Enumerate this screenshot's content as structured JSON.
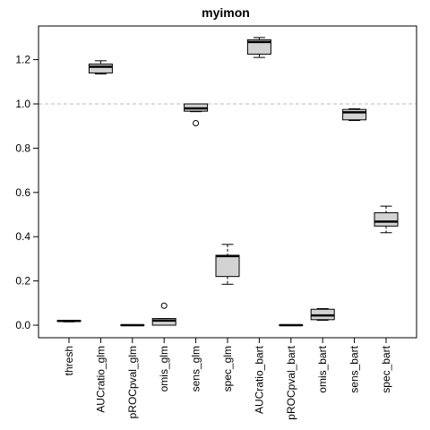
{
  "chart_data": {
    "type": "boxplot",
    "title": "myimon",
    "xlabel": "",
    "ylabel": "",
    "ylim": [
      -0.05,
      1.35
    ],
    "yticks": [
      0.0,
      0.2,
      0.4,
      0.6,
      0.8,
      1.0,
      1.2
    ],
    "ytick_labels": [
      "0.0",
      "0.2",
      "0.4",
      "0.6",
      "0.8",
      "1.0",
      "1.2"
    ],
    "reference_line": {
      "y": 1.0,
      "style": "dashed",
      "color": "#bbbbbb"
    },
    "box_fill": "#d3d3d3",
    "categories": [
      "thresh",
      "AUCratio_glm",
      "pROCpval_glm",
      "omis_glm",
      "sens_glm",
      "spec_glm",
      "AUCratio_bart",
      "pROCpval_bart",
      "omis_bart",
      "sens_bart",
      "spec_bart"
    ],
    "boxes": [
      {
        "min": 0.015,
        "q1": 0.017,
        "median": 0.019,
        "q3": 0.021,
        "max": 0.022,
        "outliers": []
      },
      {
        "min": 1.135,
        "q1": 1.14,
        "median": 1.168,
        "q3": 1.18,
        "max": 1.195,
        "outliers": []
      },
      {
        "min": 0.0,
        "q1": 0.0,
        "median": 0.0,
        "q3": 0.001,
        "max": 0.002,
        "outliers": []
      },
      {
        "min": 0.0,
        "q1": 0.0,
        "median": 0.021,
        "q3": 0.03,
        "max": 0.03,
        "outliers": [
          0.088
        ]
      },
      {
        "min": 0.965,
        "q1": 0.967,
        "median": 0.98,
        "q3": 1.0,
        "max": 1.0,
        "outliers": [
          0.913
        ]
      },
      {
        "min": 0.185,
        "q1": 0.22,
        "median": 0.312,
        "q3": 0.316,
        "max": 0.365,
        "outliers": []
      },
      {
        "min": 1.21,
        "q1": 1.225,
        "median": 1.28,
        "q3": 1.29,
        "max": 1.3,
        "outliers": []
      },
      {
        "min": 0.0,
        "q1": 0.0,
        "median": 0.0,
        "q3": 0.001,
        "max": 0.002,
        "outliers": []
      },
      {
        "min": 0.022,
        "q1": 0.025,
        "median": 0.044,
        "q3": 0.072,
        "max": 0.075,
        "outliers": []
      },
      {
        "min": 0.925,
        "q1": 0.928,
        "median": 0.962,
        "q3": 0.975,
        "max": 0.978,
        "outliers": []
      },
      {
        "min": 0.418,
        "q1": 0.448,
        "median": 0.468,
        "q3": 0.508,
        "max": 0.538,
        "outliers": []
      }
    ]
  }
}
